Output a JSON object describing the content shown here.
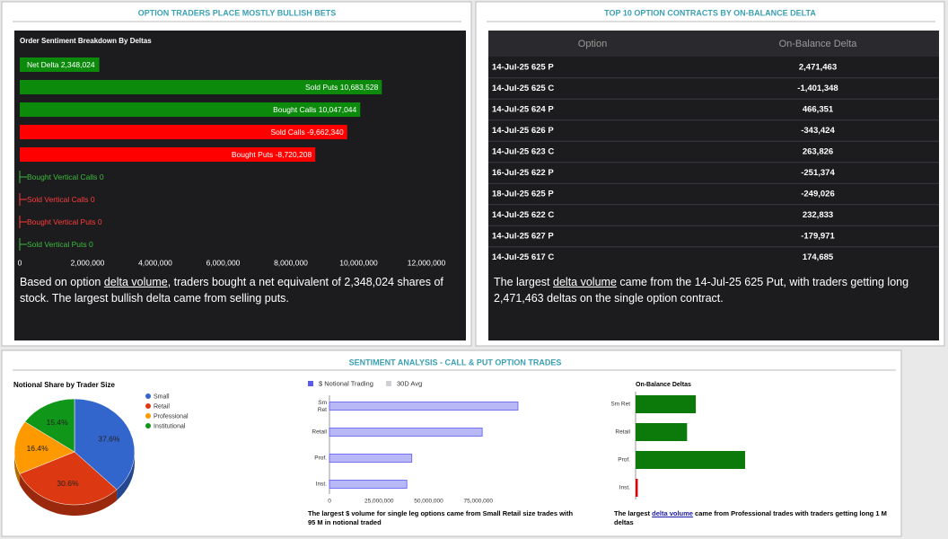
{
  "panels": [
    "OPTION TRADERS PLACE MOSTLY BULLISH BETS",
    "TOP 10 OPTION CONTRACTS BY ON-BALANCE DELTA",
    "SENTIMENT ANALYSIS - CALL & PUT OPTION TRADES"
  ],
  "chart_data": [
    {
      "type": "bar",
      "orientation": "horizontal",
      "title": "Order Sentiment Breakdown By Deltas",
      "categories": [
        "Net Delta",
        "Sold Puts",
        "Bought Calls",
        "Sold Calls",
        "Bought Puts",
        "Bought Vertical Calls",
        "Sold Vertical Calls",
        "Bought Vertical Puts",
        "Sold Vertical Puts"
      ],
      "values": [
        2348024,
        10683528,
        10047044,
        -9662340,
        -8720208,
        0,
        0,
        0,
        0
      ],
      "value_labels": [
        "2,348,024",
        "10,683,528",
        "10,047,044",
        "-9,662,340",
        "-8,720,208",
        "0",
        "0",
        "0",
        "0"
      ],
      "colors": [
        "#0b8a0b",
        "#0b8a0b",
        "#0b8a0b",
        "#ff0000",
        "#ff0000",
        "#3dbb3d",
        "#ff3b3b",
        "#ff3b3b",
        "#3dbb3d"
      ],
      "xlim": [
        0,
        12000000
      ],
      "xticks": [
        0,
        {
          "value": 2000000,
          "label": "2,000,000"
        },
        {
          "value": 4000000,
          "label": "4,000,000"
        },
        {
          "value": 6000000,
          "label": "6,000,000"
        },
        {
          "value": 8000000,
          "label": "8,000,000"
        },
        {
          "value": 10000000,
          "label": "10,000,000"
        },
        {
          "value": 12000000,
          "label": "12,000,000"
        }
      ],
      "note": [
        {
          "text": "Based on option "
        },
        {
          "text": "delta volume",
          "link": true
        },
        {
          "text": ", traders bought a net equivalent of 2,348,024 shares of stock. The largest bullish delta came from selling puts."
        }
      ]
    },
    {
      "type": "pie",
      "title": "Notional Share by Trader Size",
      "categories": [
        "Small",
        "Retail",
        "Professional",
        "Institutional"
      ],
      "values": [
        37.6,
        30.6,
        16.4,
        15.4
      ],
      "value_labels": [
        "37.6%",
        "30.6%",
        "16.4%",
        "15.4%"
      ],
      "colors": [
        "#3366cc",
        "#dc3912",
        "#ff9900",
        "#109618"
      ]
    },
    {
      "type": "bar",
      "orientation": "horizontal",
      "categories": [
        "Sm Ret",
        "Retail",
        "Prof.",
        "Inst."
      ],
      "series": [
        {
          "name": "$ Notional Trading",
          "color": "#5b5bf0",
          "values": [
            95000000,
            77000000,
            41500000,
            39000000
          ]
        },
        {
          "name": "30D Avg",
          "color": "#cfcfd6",
          "values": [
            null,
            null,
            null,
            null
          ]
        }
      ],
      "xlim": [
        0,
        100000000
      ],
      "xticks": [
        0,
        {
          "value": 25000000,
          "label": "25,000,000"
        },
        {
          "value": 50000000,
          "label": "50,000,000"
        },
        {
          "value": 75000000,
          "label": "75,000,000"
        }
      ],
      "note": [
        {
          "text": "The largest $ volume for single leg options came from Small Retail size trades with 95 M in notional traded"
        }
      ]
    },
    {
      "type": "bar",
      "orientation": "horizontal",
      "title": "On-Balance Deltas",
      "categories": [
        "Sm Ret",
        "Retail",
        "Prof.",
        "Inst."
      ],
      "values": [
        550000,
        470000,
        1000000,
        -20000
      ],
      "colors": [
        "#0b7a0b",
        "#0b7a0b",
        "#0b7a0b",
        "#dd0000"
      ],
      "xlim": [
        0,
        1500000
      ],
      "note": [
        {
          "text": "The largest "
        },
        {
          "text": "delta volume",
          "link": true
        },
        {
          "text": " came from Professional trades with traders getting long 1 M deltas"
        }
      ]
    }
  ],
  "table": {
    "columns": [
      "Option",
      "On-Balance Delta"
    ],
    "rows": [
      [
        "14-Jul-25 625 P",
        "2,471,463"
      ],
      [
        "14-Jul-25 625 C",
        "-1,401,348"
      ],
      [
        "14-Jul-25 624 P",
        "466,351"
      ],
      [
        "14-Jul-25 626 P",
        "-343,424"
      ],
      [
        "14-Jul-25 623 C",
        "263,826"
      ],
      [
        "16-Jul-25 622 P",
        "-251,374"
      ],
      [
        "18-Jul-25 625 P",
        "-249,026"
      ],
      [
        "14-Jul-25 622 C",
        "232,833"
      ],
      [
        "14-Jul-25 627 P",
        "-179,971"
      ],
      [
        "14-Jul-25 617 C",
        "174,685"
      ]
    ],
    "note": [
      {
        "text": "The largest "
      },
      {
        "text": "delta volume",
        "link": true
      },
      {
        "text": " came from the 14-Jul-25 625 Put, with traders getting long 2,471,463 deltas on the single option contract."
      }
    ]
  }
}
